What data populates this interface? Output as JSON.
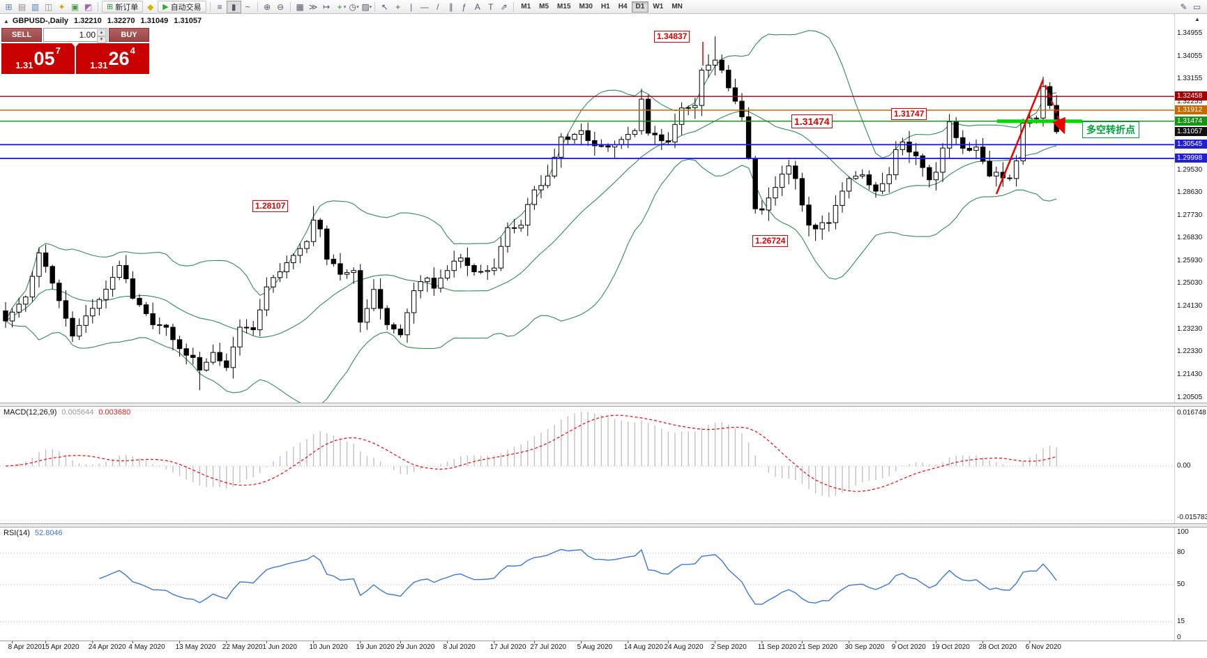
{
  "toolbar": {
    "left_icons": [
      {
        "name": "new-chart-icon",
        "glyph": "⊞",
        "color": "#5a7fb5"
      },
      {
        "name": "chart-profiles-icon",
        "glyph": "▤",
        "color": "#8a8a8a"
      },
      {
        "name": "market-watch-icon",
        "glyph": "▥",
        "color": "#5a7fb5"
      },
      {
        "name": "data-window-icon",
        "glyph": "◫",
        "color": "#888888"
      },
      {
        "name": "navigator-icon",
        "glyph": "✦",
        "color": "#caa200"
      },
      {
        "name": "terminal-icon",
        "glyph": "▣",
        "color": "#4a9a4a"
      },
      {
        "name": "strategy-tester-icon",
        "glyph": "◩",
        "color": "#9a6ab0"
      }
    ],
    "buttons": {
      "new_order": "新订单",
      "autotrading": "自动交易"
    },
    "chart_type_icons": [
      {
        "name": "bar-chart-icon",
        "glyph": "≡"
      },
      {
        "name": "candlestick-chart-icon",
        "glyph": "▮",
        "active": true
      },
      {
        "name": "line-chart-icon",
        "glyph": "~"
      }
    ],
    "zoom_icons": [
      {
        "name": "zoom-in-icon",
        "glyph": "⊕"
      },
      {
        "name": "zoom-out-icon",
        "glyph": "⊖"
      }
    ],
    "window_icons": [
      {
        "name": "tile-windows-icon",
        "glyph": "▦"
      },
      {
        "name": "auto-scroll-icon",
        "glyph": "≫"
      },
      {
        "name": "chart-shift-icon",
        "glyph": "↦"
      }
    ],
    "dropdown_icons": [
      {
        "name": "indicators-add-icon",
        "glyph": "+",
        "color": "#2f8f2f"
      },
      {
        "name": "periods-icon",
        "glyph": "◷"
      },
      {
        "name": "templates-icon",
        "glyph": "▨"
      }
    ],
    "drawing_icons": [
      {
        "name": "cursor-icon",
        "glyph": "↖"
      },
      {
        "name": "crosshair-icon",
        "glyph": "+"
      },
      {
        "name": "vertical-line-icon",
        "glyph": "|"
      },
      {
        "name": "horizontal-line-icon",
        "glyph": "—"
      },
      {
        "name": "trendline-icon",
        "glyph": "/"
      },
      {
        "name": "channel-icon",
        "glyph": "∥"
      },
      {
        "name": "fibonacci-icon",
        "glyph": "ƒ"
      },
      {
        "name": "text-icon",
        "glyph": "A"
      },
      {
        "name": "text-label-icon",
        "glyph": "T"
      },
      {
        "name": "arrows-icon",
        "glyph": "⇗"
      }
    ],
    "timeframes": [
      "M1",
      "M5",
      "M15",
      "M30",
      "H1",
      "H4",
      "D1",
      "W1",
      "MN"
    ],
    "active_timeframe": "D1",
    "right_icons": [
      {
        "name": "pencil-icon",
        "glyph": "✎"
      },
      {
        "name": "docked-object-icon",
        "glyph": "▭"
      }
    ]
  },
  "header": {
    "symbol": "GBPUSD-,Daily",
    "open": "1.32210",
    "high": "1.32270",
    "low": "1.31049",
    "close": "1.31057"
  },
  "trade_panel": {
    "sell_label": "SELL",
    "buy_label": "BUY",
    "volume": "1.00",
    "sell_price": {
      "prefix": "1.31",
      "big": "05",
      "sup": "7"
    },
    "buy_price": {
      "prefix": "1.31",
      "big": "26",
      "sup": "4"
    }
  },
  "price_scale": {
    "labels": [
      {
        "text": "1.34955",
        "value": 1.34955
      },
      {
        "text": "1.34055",
        "value": 1.34055
      },
      {
        "text": "1.33155",
        "value": 1.33155
      },
      {
        "text": "1.32255",
        "value": 1.32255
      },
      {
        "text": "1.29530",
        "value": 1.2953
      },
      {
        "text": "1.28630",
        "value": 1.2863
      },
      {
        "text": "1.27730",
        "value": 1.2773
      },
      {
        "text": "1.26830",
        "value": 1.2683
      },
      {
        "text": "1.25930",
        "value": 1.2593
      },
      {
        "text": "1.25030",
        "value": 1.2503
      },
      {
        "text": "1.24130",
        "value": 1.2413
      },
      {
        "text": "1.23230",
        "value": 1.2323
      },
      {
        "text": "1.22330",
        "value": 1.2233
      },
      {
        "text": "1.21430",
        "value": 1.2143
      },
      {
        "text": "1.20505",
        "value": 1.20505
      }
    ],
    "colored": [
      {
        "text": "1.32458",
        "value": 1.32458,
        "bg": "#a00000"
      },
      {
        "text": "1.31912",
        "value": 1.31912,
        "bg": "#c66a00"
      },
      {
        "text": "1.31474",
        "value": 1.31474,
        "bg": "#159415"
      },
      {
        "text": "1.31057",
        "value": 1.31057,
        "bg": "#111111"
      },
      {
        "text": "1.30545",
        "value": 1.30545,
        "bg": "#2121cc"
      },
      {
        "text": "1.29998",
        "value": 1.29998,
        "bg": "#2121cc"
      }
    ]
  },
  "annotations": {
    "price_tags": [
      {
        "id": "sep-high",
        "text": "1.34837",
        "value": 1.34837
      },
      {
        "id": "jun-high",
        "text": "1.28107",
        "value": 1.28107
      },
      {
        "id": "mid-level",
        "text": "1.31474",
        "value": 1.31474,
        "big": true
      },
      {
        "id": "oct-high",
        "text": "1.31747",
        "value": 1.31747
      },
      {
        "id": "sep-low",
        "text": "1.26724",
        "value": 1.26724
      }
    ],
    "note": {
      "text": "多空转折点"
    },
    "green_segment_price": 1.31474
  },
  "macd": {
    "label": "MACD(12,26,9)",
    "value_main": "0.005644",
    "value_signal": "0.003680",
    "scale": {
      "top": "0.016748",
      "zero": "0.00",
      "bottom": "-0.015783"
    }
  },
  "rsi": {
    "label": "RSI(14)",
    "value": "52.8046",
    "scale": [
      "100",
      "80",
      "50",
      "15",
      "0"
    ],
    "levels": [
      80,
      50,
      15
    ]
  },
  "chart_data": {
    "type": "candlestick",
    "symbol": "GBPUSD",
    "period": "Daily",
    "title": "GBPUSD-,Daily",
    "bars_total": 158,
    "price_range": [
      1.20505,
      1.34955
    ],
    "ohlc_current": {
      "open": 1.3221,
      "high": 1.3227,
      "low": 1.31049,
      "close": 1.31057
    },
    "close_anchors": [
      [
        0,
        1.2355
      ],
      [
        1,
        1.239
      ],
      [
        3,
        1.245
      ],
      [
        5,
        1.2625
      ],
      [
        7,
        1.2505
      ],
      [
        10,
        1.2295
      ],
      [
        12,
        1.2375
      ],
      [
        14,
        1.244
      ],
      [
        17,
        1.2575
      ],
      [
        19,
        1.2445
      ],
      [
        22,
        1.234
      ],
      [
        24,
        1.233
      ],
      [
        26,
        1.2245
      ],
      [
        28,
        1.221
      ],
      [
        29,
        1.216
      ],
      [
        31,
        1.223
      ],
      [
        33,
        1.217
      ],
      [
        35,
        1.233
      ],
      [
        37,
        1.232
      ],
      [
        39,
        1.249
      ],
      [
        41,
        1.255
      ],
      [
        43,
        1.2615
      ],
      [
        45,
        1.267
      ],
      [
        46,
        1.2755
      ],
      [
        47,
        1.272
      ],
      [
        48,
        1.26
      ],
      [
        50,
        1.254
      ],
      [
        52,
        1.2555
      ],
      [
        53,
        1.235
      ],
      [
        55,
        1.248
      ],
      [
        57,
        1.234
      ],
      [
        59,
        1.23
      ],
      [
        61,
        1.2475
      ],
      [
        63,
        1.2525
      ],
      [
        64,
        1.2485
      ],
      [
        66,
        1.2555
      ],
      [
        68,
        1.2605
      ],
      [
        70,
        1.255
      ],
      [
        72,
        1.2555
      ],
      [
        73,
        1.2565
      ],
      [
        75,
        1.2725
      ],
      [
        77,
        1.2735
      ],
      [
        79,
        1.2875
      ],
      [
        81,
        1.293
      ],
      [
        83,
        1.3085
      ],
      [
        84,
        1.3075
      ],
      [
        86,
        1.311
      ],
      [
        88,
        1.305
      ],
      [
        90,
        1.3045
      ],
      [
        92,
        1.3075
      ],
      [
        94,
        1.311
      ],
      [
        95,
        1.3235
      ],
      [
        96,
        1.31
      ],
      [
        98,
        1.307
      ],
      [
        99,
        1.3065
      ],
      [
        101,
        1.32
      ],
      [
        103,
        1.321
      ],
      [
        104,
        1.335
      ],
      [
        105,
        1.337
      ],
      [
        106,
        1.339
      ],
      [
        107,
        1.335
      ],
      [
        108,
        1.328
      ],
      [
        110,
        1.3165
      ],
      [
        111,
        1.3
      ],
      [
        112,
        1.28
      ],
      [
        113,
        1.2795
      ],
      [
        115,
        1.2885
      ],
      [
        117,
        1.297
      ],
      [
        118,
        1.292
      ],
      [
        119,
        1.2815
      ],
      [
        120,
        1.2735
      ],
      [
        121,
        1.272
      ],
      [
        123,
        1.2745
      ],
      [
        125,
        1.287
      ],
      [
        126,
        1.292
      ],
      [
        128,
        1.2935
      ],
      [
        130,
        1.287
      ],
      [
        132,
        1.2935
      ],
      [
        133,
        1.3035
      ],
      [
        134,
        1.3065
      ],
      [
        136,
        1.301
      ],
      [
        138,
        1.2915
      ],
      [
        139,
        1.2945
      ],
      [
        141,
        1.3145
      ],
      [
        143,
        1.304
      ],
      [
        145,
        1.3045
      ],
      [
        147,
        1.293
      ],
      [
        148,
        1.2945
      ],
      [
        150,
        1.292
      ],
      [
        151,
        1.299
      ],
      [
        152,
        1.314
      ],
      [
        153,
        1.316
      ],
      [
        154,
        1.316
      ],
      [
        155,
        1.3285
      ],
      [
        156,
        1.321
      ],
      [
        157,
        1.3106
      ]
    ],
    "wick_highs": [
      [
        106,
        1.34837
      ],
      [
        46,
        1.28107
      ],
      [
        141,
        1.31747
      ],
      [
        155,
        1.3324
      ]
    ],
    "wick_lows": [
      [
        29,
        1.208
      ],
      [
        121,
        1.26724
      ]
    ],
    "key_points": {
      "september_high": 1.34837,
      "september_low": 1.26724,
      "june_high": 1.28107,
      "october_high": 1.31747,
      "pivot_level": 1.31474,
      "last_close": 1.31057
    },
    "horizontal_levels": [
      {
        "price": 1.32458,
        "color": "#a00000",
        "width": 1.4
      },
      {
        "price": 1.31912,
        "color": "#c66a00",
        "width": 1.5
      },
      {
        "price": 1.31474,
        "color": "#00a000",
        "width": 1.4
      },
      {
        "price": 1.30545,
        "color": "#2121cc",
        "width": 1.8
      },
      {
        "price": 1.29998,
        "color": "#2121cc",
        "width": 1.8
      }
    ],
    "overlays": {
      "bollinger_bands": {
        "period": 20,
        "deviation": 2
      }
    },
    "sub_indicators": {
      "macd": {
        "fast": 12,
        "slow": 26,
        "signal": 9,
        "last_main": 0.005644,
        "last_signal": 0.00368,
        "scale_max": 0.016748,
        "scale_min": -0.015783
      },
      "rsi": {
        "period": 14,
        "last": 52.8046
      }
    },
    "date_labels": [
      "8 Apr 2020",
      "15 Apr 2020",
      "24 Apr 2020",
      "4 May 2020",
      "13 May 2020",
      "22 May 2020",
      "1 Jun 2020",
      "10 Jun 2020",
      "19 Jun 2020",
      "29 Jun 2020",
      "8 Jul 2020",
      "17 Jul 2020",
      "27 Jul 2020",
      "5 Aug 2020",
      "14 Aug 2020",
      "24 Aug 2020",
      "2 Sep 2020",
      "11 Sep 2020",
      "21 Sep 2020",
      "30 Sep 2020",
      "9 Oct 2020",
      "19 Oct 2020",
      "28 Oct 2020",
      "6 Nov 2020"
    ],
    "date_label_bars": [
      1,
      6,
      13,
      19,
      26,
      33,
      39,
      46,
      53,
      59,
      66,
      73,
      79,
      86,
      93,
      99,
      106,
      113,
      119,
      126,
      133,
      139,
      146,
      153
    ]
  }
}
